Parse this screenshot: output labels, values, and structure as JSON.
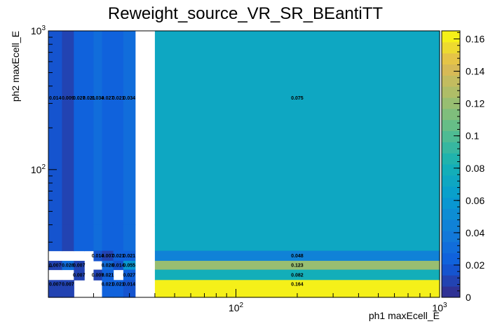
{
  "chart_data": {
    "type": "heatmap",
    "title": "Reweight_source_VR_SR_BEantiTT",
    "xlabel": "ph1 maxEcell_E",
    "ylabel": "ph2 maxEcell_E",
    "x_scale": "log",
    "y_scale": "log",
    "xlim": [
      12,
      1000
    ],
    "ylim": [
      12,
      1000
    ],
    "x_tick_labels": [
      "10^2",
      "10^3"
    ],
    "y_tick_labels": [
      "10^2",
      "10^3"
    ],
    "x_edges": [
      12,
      14,
      16,
      18,
      20,
      22,
      25,
      28,
      32,
      36,
      40,
      1000
    ],
    "y_edges": [
      12,
      14,
      16,
      19,
      22,
      26,
      40,
      1000
    ],
    "z_range": [
      0,
      0.165
    ],
    "colorbar_ticks": [
      0,
      0.02,
      0.04,
      0.06,
      0.08,
      0.1,
      0.12,
      0.14,
      0.16
    ],
    "colorbar_tick_labels": [
      "0",
      "0.02",
      "0.04",
      "0.06",
      "0.08",
      "0.1",
      "0.12",
      "0.14",
      "0.16"
    ],
    "cells": [
      {
        "ix": 0,
        "iy": 6,
        "value": 0.014,
        "label": "0.014"
      },
      {
        "ix": 1,
        "iy": 6,
        "value": 0.009,
        "label": "0.009"
      },
      {
        "ix": 2,
        "iy": 6,
        "value": 0.027,
        "label": "0.027"
      },
      {
        "ix": 3,
        "iy": 6,
        "value": 0.021,
        "label": "0.021"
      },
      {
        "ix": 4,
        "iy": 6,
        "value": 0.034,
        "label": "0.034"
      },
      {
        "ix": 5,
        "iy": 6,
        "value": 0.027,
        "label": "0.027"
      },
      {
        "ix": 6,
        "iy": 6,
        "value": 0.021,
        "label": "0.021"
      },
      {
        "ix": 7,
        "iy": 6,
        "value": 0.034,
        "label": "0.034"
      },
      {
        "ix": 10,
        "iy": 6,
        "value": 0.075,
        "label": "0.075"
      },
      {
        "ix": 0,
        "iy": 5,
        "value": 0.014,
        "label": ""
      },
      {
        "ix": 1,
        "iy": 5,
        "value": 0.009,
        "label": ""
      },
      {
        "ix": 2,
        "iy": 5,
        "value": 0.027,
        "label": ""
      },
      {
        "ix": 3,
        "iy": 5,
        "value": 0.021,
        "label": ""
      },
      {
        "ix": 4,
        "iy": 5,
        "value": 0.034,
        "label": ""
      },
      {
        "ix": 5,
        "iy": 5,
        "value": 0.027,
        "label": ""
      },
      {
        "ix": 6,
        "iy": 5,
        "value": 0.021,
        "label": ""
      },
      {
        "ix": 7,
        "iy": 5,
        "value": 0.034,
        "label": ""
      },
      {
        "ix": 10,
        "iy": 5,
        "value": 0.075,
        "label": ""
      },
      {
        "ix": 4,
        "iy": 4,
        "value": 0.014,
        "label": "0.014"
      },
      {
        "ix": 5,
        "iy": 4,
        "value": 0.007,
        "label": "0.007"
      },
      {
        "ix": 6,
        "iy": 4,
        "value": 0.021,
        "label": "0.021"
      },
      {
        "ix": 7,
        "iy": 4,
        "value": 0.021,
        "label": "0.021"
      },
      {
        "ix": 10,
        "iy": 4,
        "value": 0.048,
        "label": "0.048"
      },
      {
        "ix": 0,
        "iy": 3,
        "value": 0.007,
        "label": "0.007"
      },
      {
        "ix": 1,
        "iy": 3,
        "value": 0.028,
        "label": "0.028"
      },
      {
        "ix": 2,
        "iy": 3,
        "value": 0.007,
        "label": "0.007"
      },
      {
        "ix": 5,
        "iy": 3,
        "value": 0.028,
        "label": "0.028"
      },
      {
        "ix": 6,
        "iy": 3,
        "value": 0.014,
        "label": "0.014"
      },
      {
        "ix": 7,
        "iy": 3,
        "value": 0.055,
        "label": "0.055"
      },
      {
        "ix": 10,
        "iy": 3,
        "value": 0.123,
        "label": "0.123"
      },
      {
        "ix": 2,
        "iy": 2,
        "value": 0.007,
        "label": "0.007"
      },
      {
        "ix": 4,
        "iy": 2,
        "value": 0.007,
        "label": "0.007"
      },
      {
        "ix": 5,
        "iy": 2,
        "value": 0.021,
        "label": "0.021"
      },
      {
        "ix": 7,
        "iy": 2,
        "value": 0.027,
        "label": "0.027"
      },
      {
        "ix": 10,
        "iy": 2,
        "value": 0.082,
        "label": "0.082"
      },
      {
        "ix": 0,
        "iy": 1,
        "value": 0.007,
        "label": "0.007"
      },
      {
        "ix": 1,
        "iy": 1,
        "value": 0.007,
        "label": "0.007"
      },
      {
        "ix": 5,
        "iy": 1,
        "value": 0.021,
        "label": "0.021"
      },
      {
        "ix": 6,
        "iy": 1,
        "value": 0.021,
        "label": "0.021"
      },
      {
        "ix": 7,
        "iy": 1,
        "value": 0.014,
        "label": "0.014"
      },
      {
        "ix": 10,
        "iy": 1,
        "value": 0.164,
        "label": "0.164"
      },
      {
        "ix": 0,
        "iy": 0,
        "value": 0.007,
        "label": ""
      },
      {
        "ix": 1,
        "iy": 0,
        "value": 0.007,
        "label": ""
      },
      {
        "ix": 5,
        "iy": 0,
        "value": 0.021,
        "label": ""
      },
      {
        "ix": 6,
        "iy": 0,
        "value": 0.021,
        "label": ""
      },
      {
        "ix": 7,
        "iy": 0,
        "value": 0.014,
        "label": ""
      },
      {
        "ix": 10,
        "iy": 0,
        "value": 0.164,
        "label": ""
      }
    ]
  }
}
